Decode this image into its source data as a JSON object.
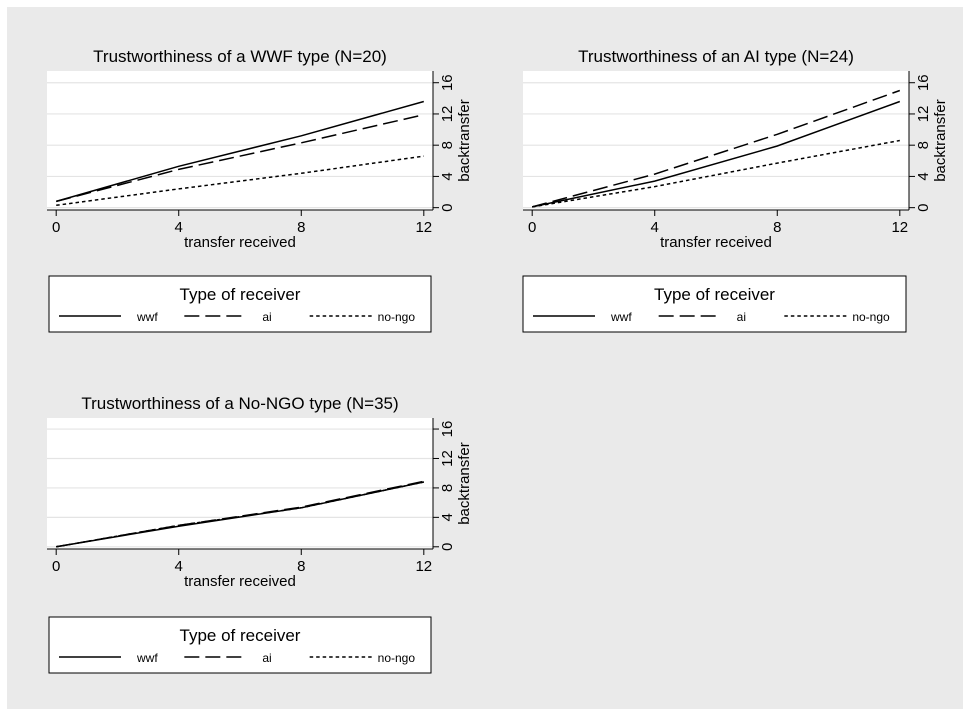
{
  "chart_data": [
    {
      "type": "line",
      "title": "Trustworthiness of a WWF type (N=20)",
      "xlabel": "transfer received",
      "ylabel": "backtransfer",
      "xticks": [
        0,
        4,
        8,
        12
      ],
      "yticks": [
        0,
        4,
        8,
        12,
        16
      ],
      "xlim": [
        -0.3,
        12.3
      ],
      "ylim": [
        -0.3,
        17.5
      ],
      "grid": true,
      "legend_position": "bottom",
      "legend_title": "Type of receiver",
      "series": [
        {
          "name": "wwf",
          "style": "solid",
          "x": [
            0,
            4,
            8,
            12
          ],
          "y": [
            0.8,
            5.3,
            9.2,
            13.6
          ]
        },
        {
          "name": "ai",
          "style": "dashed",
          "x": [
            0,
            4,
            8,
            12
          ],
          "y": [
            0.8,
            4.9,
            8.3,
            11.9
          ]
        },
        {
          "name": "no-ngo",
          "style": "dotted",
          "x": [
            0,
            4,
            8,
            12
          ],
          "y": [
            0.3,
            2.4,
            4.4,
            6.6
          ]
        }
      ]
    },
    {
      "type": "line",
      "title": "Trustworthiness of an AI type (N=24)",
      "xlabel": "transfer received",
      "ylabel": "backtransfer",
      "xticks": [
        0,
        4,
        8,
        12
      ],
      "yticks": [
        0,
        4,
        8,
        12,
        16
      ],
      "xlim": [
        -0.3,
        12.3
      ],
      "ylim": [
        -0.3,
        17.5
      ],
      "grid": true,
      "legend_position": "bottom",
      "legend_title": "Type of receiver",
      "series": [
        {
          "name": "wwf",
          "style": "solid",
          "x": [
            0,
            4,
            8,
            12
          ],
          "y": [
            0.1,
            3.4,
            7.9,
            13.6
          ]
        },
        {
          "name": "ai",
          "style": "dashed",
          "x": [
            0,
            4,
            8,
            12
          ],
          "y": [
            0.1,
            4.3,
            9.4,
            15.0
          ]
        },
        {
          "name": "no-ngo",
          "style": "dotted",
          "x": [
            0,
            4,
            8,
            12
          ],
          "y": [
            0.1,
            2.7,
            5.7,
            8.6
          ]
        }
      ]
    },
    {
      "type": "line",
      "title": "Trustworthiness of a No-NGO type (N=35)",
      "xlabel": "transfer received",
      "ylabel": "backtransfer",
      "xticks": [
        0,
        4,
        8,
        12
      ],
      "yticks": [
        0,
        4,
        8,
        12,
        16
      ],
      "xlim": [
        -0.3,
        12.3
      ],
      "ylim": [
        -0.3,
        17.5
      ],
      "grid": true,
      "legend_position": "bottom",
      "legend_title": "Type of receiver",
      "series": [
        {
          "name": "wwf",
          "style": "solid",
          "x": [
            0,
            4,
            8,
            12
          ],
          "y": [
            0.0,
            2.8,
            5.3,
            8.8
          ]
        },
        {
          "name": "ai",
          "style": "dashed",
          "x": [
            0,
            4,
            8,
            12
          ],
          "y": [
            0.0,
            2.9,
            5.4,
            8.9
          ]
        },
        {
          "name": "no-ngo",
          "style": "dotted",
          "x": [
            0,
            4,
            8,
            12
          ],
          "y": [
            0.0,
            2.9,
            5.3,
            8.8
          ]
        }
      ]
    }
  ]
}
